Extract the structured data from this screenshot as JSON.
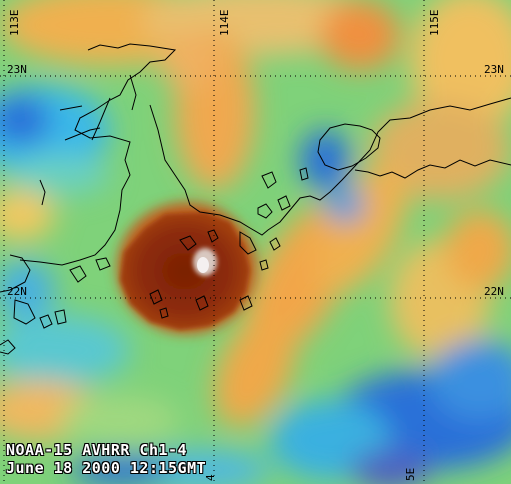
{
  "caption": {
    "line1": "NOAA-15 AVHRR Ch1-4",
    "line2": "June 18 2000 12:15GMT"
  },
  "grid": {
    "longitude_labels": [
      "113E",
      "114E",
      "115E"
    ],
    "latitude_labels": [
      "23N",
      "22N"
    ],
    "bottom_labels": [
      "4",
      "5E"
    ]
  },
  "colors": {
    "storm_core": "#8a2a08",
    "warm": "#f2b14a",
    "green": "#8ad17a",
    "cyan": "#3ac6e6",
    "blue": "#2a6fd8",
    "coastline": "#000000"
  }
}
